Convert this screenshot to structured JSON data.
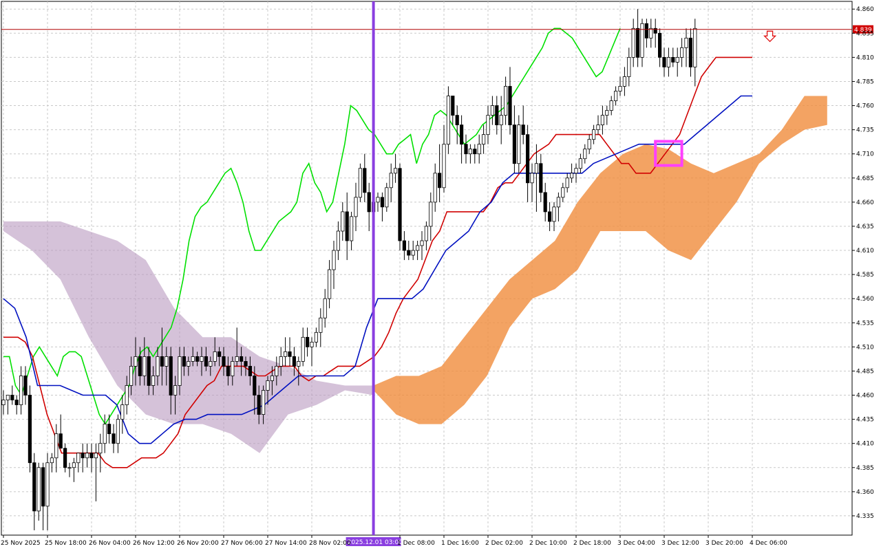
{
  "chart_data": {
    "type": "candlestick",
    "title": "",
    "ylim": [
      4.315,
      4.868
    ],
    "y_ticks": [
      "4.860",
      "4.835",
      "4.810",
      "4.785",
      "4.760",
      "4.735",
      "4.710",
      "4.685",
      "4.660",
      "4.635",
      "4.610",
      "4.585",
      "4.560",
      "4.535",
      "4.510",
      "4.485",
      "4.460",
      "4.435",
      "4.410",
      "4.385",
      "4.360",
      "4.335"
    ],
    "x_ticks": [
      "25 Nov 2025",
      "25 Nov 18:00",
      "26 Nov 04:00",
      "26 Nov 12:00",
      "26 Nov 20:00",
      "27 Nov 06:00",
      "27 Nov 14:00",
      "28 Nov 02:00",
      "1 Dec 08:00",
      "1 Dec 16:00",
      "2 Dec 02:00",
      "2 Dec 10:00",
      "2 Dec 18:00",
      "3 Dec 04:00",
      "3 Dec 12:00",
      "3 Dec 20:00",
      "4 Dec 06:00"
    ],
    "x_tick_index": [
      0,
      10,
      20,
      30,
      40,
      50,
      60,
      70,
      90,
      100,
      110,
      120,
      130,
      140,
      150,
      160,
      170
    ],
    "current_price": "4.839",
    "current_price_value": 4.839,
    "vline_index": 84,
    "vline_label": "2025.12.01 03:00",
    "candles": [
      [
        4.45,
        4.465,
        4.44,
        4.455
      ],
      [
        4.455,
        4.46,
        4.44,
        4.46
      ],
      [
        4.46,
        4.47,
        4.45,
        4.455
      ],
      [
        4.455,
        4.46,
        4.44,
        4.45
      ],
      [
        4.45,
        4.49,
        4.44,
        4.48
      ],
      [
        4.48,
        4.49,
        4.45,
        4.46
      ],
      [
        4.46,
        4.47,
        4.38,
        4.39
      ],
      [
        4.39,
        4.4,
        4.32,
        4.34
      ],
      [
        4.34,
        4.39,
        4.33,
        4.385
      ],
      [
        4.385,
        4.39,
        4.32,
        4.345
      ],
      [
        4.345,
        4.4,
        4.32,
        4.39
      ],
      [
        4.39,
        4.4,
        4.38,
        4.395
      ],
      [
        4.395,
        4.43,
        4.38,
        4.42
      ],
      [
        4.42,
        4.44,
        4.41,
        4.405
      ],
      [
        4.405,
        4.41,
        4.38,
        4.385
      ],
      [
        4.385,
        4.39,
        4.375,
        4.385
      ],
      [
        4.385,
        4.395,
        4.37,
        4.39
      ],
      [
        4.39,
        4.4,
        4.38,
        4.4
      ],
      [
        4.4,
        4.41,
        4.38,
        4.395
      ],
      [
        4.395,
        4.41,
        4.385,
        4.4
      ],
      [
        4.4,
        4.41,
        4.38,
        4.395
      ],
      [
        4.395,
        4.41,
        4.35,
        4.4
      ],
      [
        4.4,
        4.42,
        4.38,
        4.41
      ],
      [
        4.41,
        4.44,
        4.4,
        4.43
      ],
      [
        4.43,
        4.44,
        4.41,
        4.42
      ],
      [
        4.42,
        4.43,
        4.4,
        4.41
      ],
      [
        4.41,
        4.44,
        4.4,
        4.435
      ],
      [
        4.435,
        4.46,
        4.42,
        4.45
      ],
      [
        4.45,
        4.48,
        4.44,
        4.47
      ],
      [
        4.47,
        4.5,
        4.46,
        4.49
      ],
      [
        4.49,
        4.52,
        4.47,
        4.5
      ],
      [
        4.5,
        4.51,
        4.47,
        4.48
      ],
      [
        4.48,
        4.52,
        4.47,
        4.5
      ],
      [
        4.5,
        4.51,
        4.46,
        4.47
      ],
      [
        4.47,
        4.49,
        4.46,
        4.48
      ],
      [
        4.48,
        4.51,
        4.47,
        4.5
      ],
      [
        4.5,
        4.53,
        4.47,
        4.49
      ],
      [
        4.49,
        4.51,
        4.47,
        4.5
      ],
      [
        4.5,
        4.51,
        4.44,
        4.46
      ],
      [
        4.46,
        4.48,
        4.44,
        4.47
      ],
      [
        4.47,
        4.51,
        4.46,
        4.5
      ],
      [
        4.5,
        4.51,
        4.48,
        4.49
      ],
      [
        4.49,
        4.5,
        4.48,
        4.495
      ],
      [
        4.495,
        4.51,
        4.49,
        4.5
      ],
      [
        4.5,
        4.505,
        4.49,
        4.495
      ],
      [
        4.495,
        4.51,
        4.48,
        4.5
      ],
      [
        4.5,
        4.51,
        4.485,
        4.49
      ],
      [
        4.49,
        4.5,
        4.48,
        4.495
      ],
      [
        4.495,
        4.52,
        4.49,
        4.505
      ],
      [
        4.505,
        4.51,
        4.49,
        4.5
      ],
      [
        4.5,
        4.51,
        4.48,
        4.49
      ],
      [
        4.49,
        4.5,
        4.47,
        4.48
      ],
      [
        4.48,
        4.5,
        4.47,
        4.495
      ],
      [
        4.495,
        4.53,
        4.49,
        4.5
      ],
      [
        4.5,
        4.51,
        4.48,
        4.495
      ],
      [
        4.495,
        4.5,
        4.48,
        4.49
      ],
      [
        4.49,
        4.5,
        4.47,
        4.48
      ],
      [
        4.48,
        4.49,
        4.44,
        4.46
      ],
      [
        4.46,
        4.47,
        4.43,
        4.44
      ],
      [
        4.44,
        4.47,
        4.43,
        4.465
      ],
      [
        4.465,
        4.48,
        4.45,
        4.475
      ],
      [
        4.475,
        4.49,
        4.46,
        4.48
      ],
      [
        4.48,
        4.5,
        4.47,
        4.49
      ],
      [
        4.49,
        4.51,
        4.48,
        4.5
      ],
      [
        4.5,
        4.52,
        4.49,
        4.505
      ],
      [
        4.505,
        4.52,
        4.49,
        4.5
      ],
      [
        4.5,
        4.51,
        4.48,
        4.49
      ],
      [
        4.49,
        4.5,
        4.47,
        4.495
      ],
      [
        4.495,
        4.53,
        4.49,
        4.52
      ],
      [
        4.52,
        4.53,
        4.5,
        4.51
      ],
      [
        4.51,
        4.52,
        4.49,
        4.515
      ],
      [
        4.515,
        4.53,
        4.51,
        4.525
      ],
      [
        4.525,
        4.55,
        4.51,
        4.54
      ],
      [
        4.54,
        4.57,
        4.53,
        4.56
      ],
      [
        4.56,
        4.6,
        4.55,
        4.59
      ],
      [
        4.59,
        4.62,
        4.57,
        4.61
      ],
      [
        4.61,
        4.64,
        4.6,
        4.63
      ],
      [
        4.63,
        4.66,
        4.62,
        4.65
      ],
      [
        4.65,
        4.67,
        4.6,
        4.62
      ],
      [
        4.62,
        4.65,
        4.61,
        4.645
      ],
      [
        4.645,
        4.68,
        4.63,
        4.665
      ],
      [
        4.665,
        4.7,
        4.66,
        4.695
      ],
      [
        4.695,
        4.71,
        4.66,
        4.67
      ],
      [
        4.67,
        4.68,
        4.63,
        4.65
      ],
      [
        4.65,
        4.67,
        4.64,
        4.66
      ],
      [
        4.66,
        4.67,
        4.65,
        4.665
      ],
      [
        4.665,
        4.67,
        4.64,
        4.655
      ],
      [
        4.655,
        4.68,
        4.65,
        4.675
      ],
      [
        4.675,
        4.7,
        4.66,
        4.69
      ],
      [
        4.69,
        4.71,
        4.68,
        4.695
      ],
      [
        4.695,
        4.7,
        4.61,
        4.62
      ],
      [
        4.62,
        4.63,
        4.6,
        4.61
      ],
      [
        4.61,
        4.62,
        4.6,
        4.605
      ],
      [
        4.605,
        4.62,
        4.6,
        4.61
      ],
      [
        4.61,
        4.62,
        4.6,
        4.615
      ],
      [
        4.615,
        4.63,
        4.6,
        4.62
      ],
      [
        4.62,
        4.64,
        4.61,
        4.635
      ],
      [
        4.635,
        4.67,
        4.62,
        4.66
      ],
      [
        4.66,
        4.7,
        4.65,
        4.69
      ],
      [
        4.69,
        4.72,
        4.66,
        4.675
      ],
      [
        4.675,
        4.74,
        4.67,
        4.72
      ],
      [
        4.72,
        4.78,
        4.71,
        4.77
      ],
      [
        4.77,
        4.77,
        4.74,
        4.75
      ],
      [
        4.75,
        4.76,
        4.72,
        4.74
      ],
      [
        4.74,
        4.75,
        4.7,
        4.72
      ],
      [
        4.72,
        4.73,
        4.7,
        4.71
      ],
      [
        4.71,
        4.72,
        4.7,
        4.715
      ],
      [
        4.715,
        4.72,
        4.7,
        4.71
      ],
      [
        4.71,
        4.73,
        4.7,
        4.72
      ],
      [
        4.72,
        4.74,
        4.71,
        4.73
      ],
      [
        4.73,
        4.76,
        4.72,
        4.75
      ],
      [
        4.75,
        4.77,
        4.74,
        4.76
      ],
      [
        4.76,
        4.77,
        4.73,
        4.74
      ],
      [
        4.74,
        4.77,
        4.72,
        4.75
      ],
      [
        4.75,
        4.79,
        4.74,
        4.78
      ],
      [
        4.78,
        4.8,
        4.73,
        4.74
      ],
      [
        4.74,
        4.76,
        4.69,
        4.7
      ],
      [
        4.7,
        4.75,
        4.69,
        4.74
      ],
      [
        4.74,
        4.76,
        4.72,
        4.73
      ],
      [
        4.73,
        4.74,
        4.66,
        4.68
      ],
      [
        4.68,
        4.7,
        4.66,
        4.69
      ],
      [
        4.69,
        4.72,
        4.65,
        4.7
      ],
      [
        4.7,
        4.71,
        4.66,
        4.67
      ],
      [
        4.67,
        4.68,
        4.64,
        4.65
      ],
      [
        4.65,
        4.66,
        4.63,
        4.64
      ],
      [
        4.64,
        4.66,
        4.63,
        4.655
      ],
      [
        4.655,
        4.67,
        4.64,
        4.665
      ],
      [
        4.665,
        4.68,
        4.66,
        4.675
      ],
      [
        4.675,
        4.69,
        4.67,
        4.685
      ],
      [
        4.685,
        4.7,
        4.68,
        4.69
      ],
      [
        4.69,
        4.7,
        4.68,
        4.695
      ],
      [
        4.695,
        4.71,
        4.69,
        4.705
      ],
      [
        4.705,
        4.72,
        4.7,
        4.715
      ],
      [
        4.715,
        4.73,
        4.71,
        4.725
      ],
      [
        4.725,
        4.74,
        4.72,
        4.735
      ],
      [
        4.735,
        4.75,
        4.73,
        4.74
      ],
      [
        4.74,
        4.76,
        4.73,
        4.75
      ],
      [
        4.75,
        4.76,
        4.74,
        4.755
      ],
      [
        4.755,
        4.77,
        4.75,
        4.765
      ],
      [
        4.765,
        4.78,
        4.76,
        4.775
      ],
      [
        4.775,
        4.79,
        4.77,
        4.78
      ],
      [
        4.78,
        4.8,
        4.77,
        4.79
      ],
      [
        4.79,
        4.82,
        4.78,
        4.81
      ],
      [
        4.81,
        4.85,
        4.8,
        4.84
      ],
      [
        4.84,
        4.86,
        4.8,
        4.81
      ],
      [
        4.81,
        4.85,
        4.8,
        4.845
      ],
      [
        4.845,
        4.85,
        4.82,
        4.83
      ],
      [
        4.83,
        4.85,
        4.82,
        4.84
      ],
      [
        4.84,
        4.85,
        4.82,
        4.835
      ],
      [
        4.835,
        4.84,
        4.8,
        4.81
      ],
      [
        4.81,
        4.82,
        4.79,
        4.8
      ],
      [
        4.8,
        4.82,
        4.79,
        4.81
      ],
      [
        4.81,
        4.82,
        4.8,
        4.805
      ],
      [
        4.805,
        4.82,
        4.79,
        4.81
      ],
      [
        4.81,
        4.83,
        4.8,
        4.82
      ],
      [
        4.82,
        4.84,
        4.8,
        4.83
      ],
      [
        4.83,
        4.84,
        4.79,
        4.8
      ],
      [
        4.8,
        4.85,
        4.78,
        4.84
      ]
    ],
    "series": [
      {
        "color": "#00e000",
        "values": [
          4.5,
          4.5,
          4.47,
          4.46,
          4.48,
          4.5,
          4.51,
          4.5,
          4.49,
          4.48,
          4.5,
          4.505,
          4.505,
          4.5,
          4.48,
          4.46,
          4.44,
          4.43,
          4.44,
          4.45,
          4.46,
          4.47,
          4.49,
          4.505,
          4.51,
          4.5,
          4.51,
          4.52,
          4.53,
          4.55,
          4.58,
          4.62,
          4.645,
          4.655,
          4.66,
          4.67,
          4.68,
          4.69,
          4.695,
          4.68,
          4.66,
          4.63,
          4.61,
          4.61,
          4.62,
          4.63,
          4.64,
          4.645,
          4.65,
          4.66,
          4.69,
          4.7,
          4.68,
          4.67,
          4.65,
          4.66,
          4.69,
          4.72,
          4.76,
          4.755,
          4.745,
          4.735,
          4.73,
          4.72,
          4.71,
          4.71,
          4.72,
          4.725,
          4.73,
          4.7,
          4.72,
          4.73,
          4.75,
          4.755,
          4.75,
          4.74,
          4.73,
          4.72,
          4.725,
          4.73,
          4.74,
          4.745,
          4.75,
          4.755,
          4.76,
          4.77,
          4.78,
          4.79,
          4.8,
          4.81,
          4.82,
          4.835,
          4.84,
          4.84,
          4.835,
          4.83,
          4.82,
          4.81,
          4.8,
          4.79,
          4.795,
          4.81,
          4.825,
          4.84
        ]
      },
      {
        "color": "#d00000",
        "values": [
          4.52,
          4.52,
          4.52,
          4.515,
          4.5,
          4.47,
          4.44,
          4.42,
          4.4,
          4.4,
          4.4,
          4.4,
          4.4,
          4.4,
          4.39,
          4.385,
          4.385,
          4.385,
          4.39,
          4.395,
          4.395,
          4.395,
          4.4,
          4.41,
          4.42,
          4.44,
          4.45,
          4.46,
          4.47,
          4.475,
          4.49,
          4.49,
          4.49,
          4.49,
          4.485,
          4.48,
          4.48,
          4.485,
          4.49,
          4.49,
          4.49,
          4.48,
          4.475,
          4.48,
          4.48,
          4.485,
          4.49,
          4.49,
          4.49,
          4.49,
          4.495,
          4.5,
          4.51,
          4.525,
          4.545,
          4.56,
          4.57,
          4.58,
          4.6,
          4.62,
          4.63,
          4.65,
          4.65,
          4.65,
          4.65,
          4.65,
          4.65,
          4.66,
          4.675,
          4.68,
          4.68,
          4.69,
          4.7,
          4.71,
          4.715,
          4.72,
          4.73,
          4.73,
          4.73,
          4.73,
          4.73,
          4.73,
          4.73,
          4.72,
          4.71,
          4.7,
          4.7,
          4.69,
          4.69,
          4.69,
          4.7,
          4.71,
          4.72,
          4.73,
          4.75,
          4.77,
          4.79,
          4.8,
          4.81,
          4.81,
          4.81,
          4.81,
          4.81,
          4.81
        ]
      },
      {
        "color": "#0010c0",
        "values": [
          4.56,
          4.55,
          4.52,
          4.47,
          4.47,
          4.47,
          4.465,
          4.46,
          4.46,
          4.46,
          4.45,
          4.42,
          4.41,
          4.41,
          4.42,
          4.43,
          4.435,
          4.435,
          4.44,
          4.44,
          4.44,
          4.44,
          4.445,
          4.45,
          4.46,
          4.47,
          4.48,
          4.48,
          4.48,
          4.48,
          4.48,
          4.49,
          4.53,
          4.56,
          4.56,
          4.56,
          4.56,
          4.57,
          4.59,
          4.61,
          4.62,
          4.63,
          4.65,
          4.66,
          4.68,
          4.69,
          4.69,
          4.69,
          4.69,
          4.69,
          4.69,
          4.69,
          4.7,
          4.705,
          4.71,
          4.715,
          4.72,
          4.72,
          4.72,
          4.72,
          4.72,
          4.73,
          4.74,
          4.75,
          4.76,
          4.77,
          4.77
        ]
      }
    ],
    "clouds": [
      {
        "color": "#b999c0",
        "upper": [
          4.64,
          4.64,
          4.64,
          4.63,
          4.62,
          4.6,
          4.55,
          4.52,
          4.52,
          4.5,
          4.49,
          4.475,
          4.47,
          4.47
        ],
        "lower": [
          4.63,
          4.61,
          4.58,
          4.52,
          4.47,
          4.44,
          4.43,
          4.43,
          4.42,
          4.4,
          4.44,
          4.45,
          4.465,
          4.46
        ]
      },
      {
        "color": "#f08c3c",
        "upper": [
          4.47,
          4.48,
          4.48,
          4.49,
          4.52,
          4.55,
          4.58,
          4.6,
          4.62,
          4.66,
          4.69,
          4.71,
          4.72,
          4.715,
          4.7,
          4.69,
          4.7,
          4.71,
          4.735,
          4.77,
          4.77
        ],
        "lower": [
          4.465,
          4.44,
          4.43,
          4.43,
          4.45,
          4.48,
          4.53,
          4.56,
          4.57,
          4.59,
          4.63,
          4.63,
          4.63,
          4.61,
          4.6,
          4.63,
          4.66,
          4.7,
          4.72,
          4.735,
          4.74
        ]
      }
    ],
    "highlight_box": {
      "from_index": 148,
      "to_index": 154,
      "y_top": 4.723,
      "y_bottom": 4.698
    },
    "sell_arrow": {
      "index": 174,
      "value": 4.83
    }
  }
}
